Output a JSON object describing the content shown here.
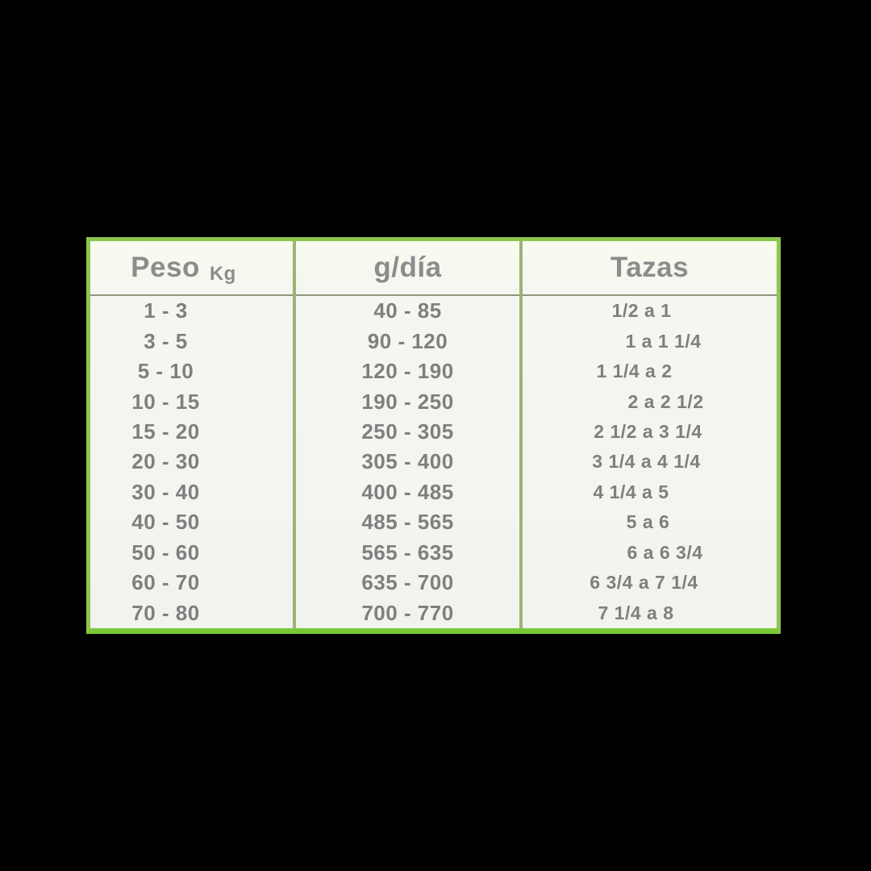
{
  "background_color": "#000000",
  "table": {
    "border_color": "#8cc64e",
    "divider_color": "#9cb377",
    "text_color": "#7f7f7f",
    "header": {
      "col1_label": "Peso",
      "col1_unit": "Kg",
      "col2_label": "g/día",
      "col3_label": "Tazas"
    }
  },
  "chart_data": {
    "type": "table",
    "title": "",
    "columns": [
      "Peso Kg",
      "g/día",
      "Tazas"
    ],
    "rows": [
      [
        "1 - 3",
        "40 - 85",
        "1/2 a 1"
      ],
      [
        "3 - 5",
        "90 - 120",
        "1 a 1 1/4"
      ],
      [
        "5 - 10",
        "120 - 190",
        "1 1/4 a 2"
      ],
      [
        "10 - 15",
        "190 - 250",
        "2 a 2 1/2"
      ],
      [
        "15 - 20",
        "250 - 305",
        "2 1/2 a 3 1/4"
      ],
      [
        "20 - 30",
        "305 - 400",
        "3 1/4 a 4 1/4"
      ],
      [
        "30 - 40",
        "400 - 485",
        "4 1/4 a 5"
      ],
      [
        "40 - 50",
        "485 - 565",
        "5 a 6"
      ],
      [
        "50 - 60",
        "565 - 635",
        "6 a 6 3/4"
      ],
      [
        "60 - 70",
        "635 - 700",
        "6 3/4 a 7 1/4"
      ],
      [
        "70 - 80",
        "700 - 770",
        "7 1/4 a 8"
      ]
    ]
  }
}
